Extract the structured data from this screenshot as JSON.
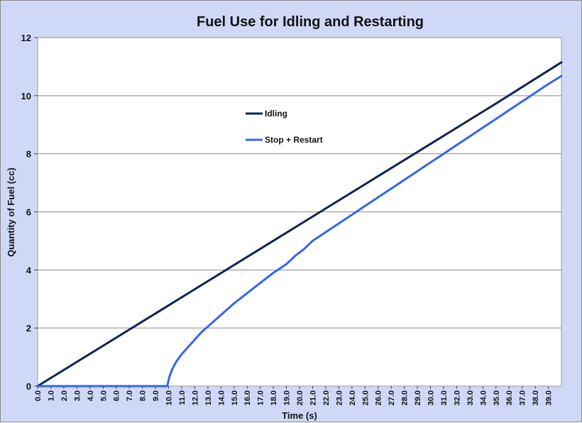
{
  "chart_data": {
    "type": "line",
    "title": "Fuel Use for Idling and Restarting",
    "xlabel": "Time (s)",
    "ylabel": "Quantity of Fuel (cc)",
    "xlim": [
      0,
      40
    ],
    "ylim": [
      0,
      12
    ],
    "yticks": [
      "0",
      "2",
      "4",
      "6",
      "8",
      "10",
      "12"
    ],
    "xticks": [
      "0.0",
      "1.0",
      "2.0",
      "3.0",
      "4.0",
      "5.0",
      "6.0",
      "7.0",
      "8.0",
      "9.0",
      "10.0",
      "11.0",
      "12.0",
      "13.0",
      "14.0",
      "15.0",
      "16.0",
      "17.0",
      "18.0",
      "19.0",
      "20.0",
      "21.0",
      "22.0",
      "23.0",
      "24.0",
      "25.0",
      "26.0",
      "27.0",
      "28.0",
      "29.0",
      "30.0",
      "31.0",
      "32.0",
      "33.0",
      "34.0",
      "35.0",
      "36.0",
      "37.0",
      "38.0",
      "39.0"
    ],
    "grid": true,
    "legend_position": "upper-middle",
    "series": [
      {
        "name": "Idling",
        "color": "#0d2453",
        "x": [
          0,
          5,
          10,
          15,
          20,
          25,
          30,
          35,
          40
        ],
        "y": [
          0,
          1.39,
          2.78,
          4.17,
          5.56,
          6.95,
          8.34,
          9.73,
          11.15
        ]
      },
      {
        "name": "Stop + Restart",
        "color": "#3366ee",
        "x": [
          0,
          9.9,
          10.05,
          10.3,
          10.6,
          11,
          11.5,
          12,
          12.5,
          13,
          14,
          15,
          16,
          17,
          18,
          19,
          19.7,
          20.3,
          21,
          22,
          23,
          24,
          25,
          26,
          27,
          28,
          29,
          30,
          31,
          32,
          33,
          34,
          35,
          36,
          37,
          38,
          39,
          40
        ],
        "y": [
          0,
          0,
          0.3,
          0.6,
          0.85,
          1.1,
          1.35,
          1.6,
          1.85,
          2.05,
          2.45,
          2.85,
          3.2,
          3.55,
          3.9,
          4.2,
          4.5,
          4.7,
          5.0,
          5.3,
          5.6,
          5.9,
          6.2,
          6.5,
          6.8,
          7.1,
          7.4,
          7.7,
          8.0,
          8.3,
          8.6,
          8.9,
          9.2,
          9.5,
          9.8,
          10.1,
          10.4,
          10.68
        ]
      }
    ]
  }
}
